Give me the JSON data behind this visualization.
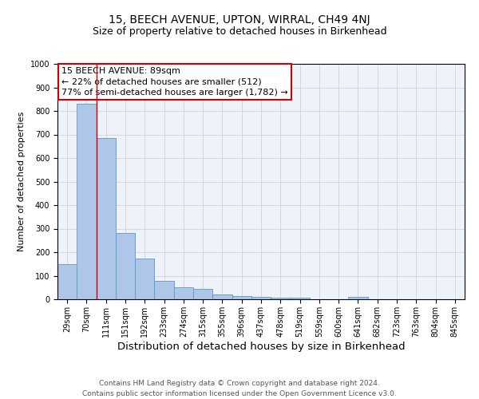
{
  "title": "15, BEECH AVENUE, UPTON, WIRRAL, CH49 4NJ",
  "subtitle": "Size of property relative to detached houses in Birkenhead",
  "xlabel": "Distribution of detached houses by size in Birkenhead",
  "ylabel": "Number of detached properties",
  "footer_line1": "Contains HM Land Registry data © Crown copyright and database right 2024.",
  "footer_line2": "Contains public sector information licensed under the Open Government Licence v3.0.",
  "categories": [
    "29sqm",
    "70sqm",
    "111sqm",
    "151sqm",
    "192sqm",
    "233sqm",
    "274sqm",
    "315sqm",
    "355sqm",
    "396sqm",
    "437sqm",
    "478sqm",
    "519sqm",
    "559sqm",
    "600sqm",
    "641sqm",
    "682sqm",
    "723sqm",
    "763sqm",
    "804sqm",
    "845sqm"
  ],
  "values": [
    148,
    830,
    685,
    282,
    172,
    77,
    50,
    43,
    22,
    15,
    10,
    8,
    7,
    0,
    0,
    9,
    0,
    0,
    0,
    0,
    0
  ],
  "bar_color": "#aec6e8",
  "bar_edge_color": "#5a9ac8",
  "annotation_line1": "15 BEECH AVENUE: 89sqm",
  "annotation_line2": "← 22% of detached houses are smaller (512)",
  "annotation_line3": "77% of semi-detached houses are larger (1,782) →",
  "annotation_box_color": "#ffffff",
  "annotation_box_edge_color": "#cc0000",
  "red_line_x": 1.5,
  "ylim": [
    0,
    1000
  ],
  "yticks": [
    0,
    100,
    200,
    300,
    400,
    500,
    600,
    700,
    800,
    900,
    1000
  ],
  "grid_color": "#cccccc",
  "background_color": "#eef2fa",
  "title_fontsize": 10,
  "subtitle_fontsize": 9,
  "xlabel_fontsize": 9.5,
  "ylabel_fontsize": 8,
  "tick_fontsize": 7,
  "annotation_fontsize": 8,
  "footer_fontsize": 6.5
}
